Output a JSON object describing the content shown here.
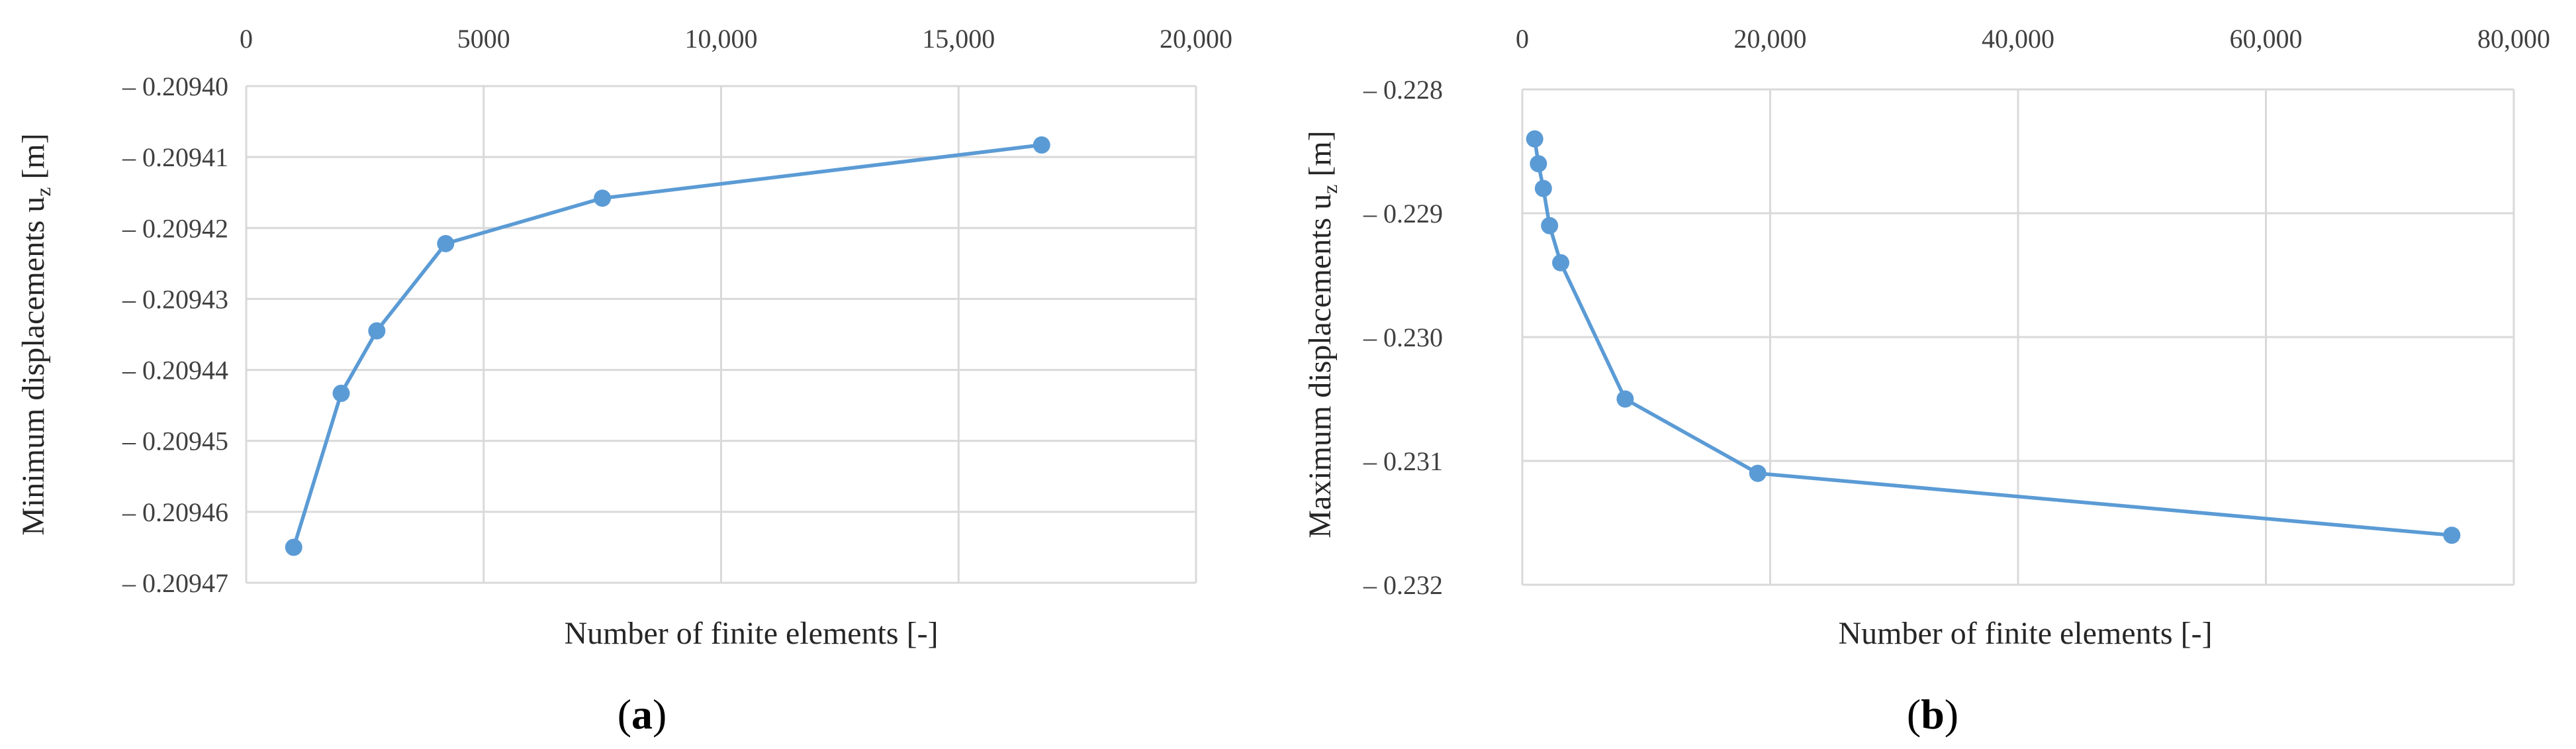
{
  "colors": {
    "series": "#5b9bd5",
    "grid": "#d9d9d9",
    "tick_text": "#404040"
  },
  "chart_data": [
    {
      "type": "line",
      "panel_label": "a",
      "xlabel": "Number of finite elements [-]",
      "ylabel_main": "Minimum displacements u",
      "ylabel_sub": "z",
      "ylabel_unit": " [m]",
      "xlim": [
        0,
        20000
      ],
      "ylim": [
        -0.20947,
        -0.2094
      ],
      "x_axis_position": "top",
      "y_inverted": true,
      "grid": true,
      "x_ticks": [
        {
          "value": 0,
          "label": "0"
        },
        {
          "value": 5000,
          "label": "5000"
        },
        {
          "value": 10000,
          "label": "10,000"
        },
        {
          "value": 15000,
          "label": "15,000"
        },
        {
          "value": 20000,
          "label": "20,000"
        }
      ],
      "y_ticks": [
        {
          "value": -0.2094,
          "label": "– 0.20940"
        },
        {
          "value": -0.20941,
          "label": "– 0.20941"
        },
        {
          "value": -0.20942,
          "label": "– 0.20942"
        },
        {
          "value": -0.20943,
          "label": "– 0.20943"
        },
        {
          "value": -0.20944,
          "label": "– 0.20944"
        },
        {
          "value": -0.20945,
          "label": "– 0.20945"
        },
        {
          "value": -0.20946,
          "label": "– 0.20946"
        },
        {
          "value": -0.20947,
          "label": "– 0.20947"
        }
      ],
      "series": [
        {
          "x": [
            1000,
            2000,
            2750,
            4200,
            7500,
            16750
          ],
          "y": [
            -0.209465,
            -0.2094433,
            -0.2094345,
            -0.2094222,
            -0.2094158,
            -0.2094083
          ]
        }
      ]
    },
    {
      "type": "line",
      "panel_label": "b",
      "xlabel": "Number of finite elements [-]",
      "ylabel_main": "Maximum displacements u",
      "ylabel_sub": "z",
      "ylabel_unit": " [m]",
      "xlim": [
        0,
        80000
      ],
      "ylim": [
        -0.232,
        -0.228
      ],
      "x_axis_position": "top",
      "y_inverted": true,
      "grid": true,
      "x_ticks": [
        {
          "value": 0,
          "label": "0"
        },
        {
          "value": 20000,
          "label": "20,000"
        },
        {
          "value": 40000,
          "label": "40,000"
        },
        {
          "value": 60000,
          "label": "60,000"
        },
        {
          "value": 80000,
          "label": "80,000"
        }
      ],
      "y_ticks": [
        {
          "value": -0.228,
          "label": "– 0.228"
        },
        {
          "value": -0.229,
          "label": "– 0.229"
        },
        {
          "value": -0.23,
          "label": "– 0.230"
        },
        {
          "value": -0.231,
          "label": "– 0.231"
        },
        {
          "value": -0.232,
          "label": "– 0.232"
        }
      ],
      "series": [
        {
          "x": [
            1000,
            1300,
            1700,
            2200,
            3100,
            8300,
            19000,
            75000
          ],
          "y": [
            -0.2284,
            -0.2286,
            -0.2288,
            -0.2291,
            -0.2294,
            -0.2305,
            -0.2311,
            -0.2316
          ]
        }
      ]
    }
  ]
}
